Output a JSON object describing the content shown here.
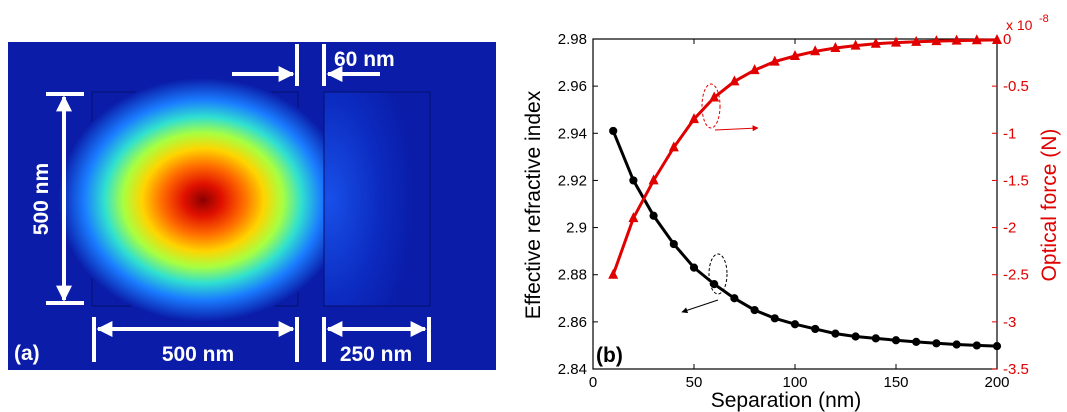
{
  "panel_a": {
    "label": "(a)",
    "dim_height": "500 nm",
    "dim_width": "500 nm",
    "dim_gap": "60 nm",
    "dim_width2": "250 nm",
    "colors": {
      "background": "#0a1ca8",
      "arrow": "#ffffff",
      "hot": "#8a0000"
    }
  },
  "chart_data": {
    "type": "line",
    "panel_label": "(b)",
    "xlabel": "Separation (nm)",
    "ylabel_left": "Effective refractive index",
    "ylabel_right": "Optical force (N)",
    "right_exponent": "x 10",
    "right_exponent_power": "-8",
    "x_range": [
      0,
      200
    ],
    "y_left_range": [
      2.84,
      2.98
    ],
    "y_right_range": [
      -3.5,
      0
    ],
    "x_ticks": [
      "0",
      "50",
      "100",
      "150",
      "200"
    ],
    "y_left_ticks": [
      "2.84",
      "2.86",
      "2.88",
      "2.9",
      "2.92",
      "2.94",
      "2.96",
      "2.98"
    ],
    "y_right_ticks": [
      "-3.5",
      "-3",
      "-2.5",
      "-2",
      "-1.5",
      "-1",
      "-0.5",
      "0"
    ],
    "grid": false,
    "series": [
      {
        "axis": "left",
        "color": "#000000",
        "marker": "circle",
        "x": [
          10,
          20,
          30,
          40,
          50,
          60,
          70,
          80,
          90,
          100,
          110,
          120,
          130,
          140,
          150,
          160,
          170,
          180,
          190,
          200
        ],
        "values": [
          2.941,
          2.92,
          2.905,
          2.893,
          2.883,
          2.876,
          2.87,
          2.865,
          2.8615,
          2.859,
          2.857,
          2.855,
          2.8538,
          2.853,
          2.8522,
          2.8515,
          2.8509,
          2.8504,
          2.85,
          2.8497
        ]
      },
      {
        "axis": "right",
        "color": "#e00000",
        "marker": "triangle",
        "x": [
          10,
          20,
          30,
          40,
          50,
          60,
          70,
          80,
          90,
          100,
          110,
          120,
          130,
          140,
          150,
          160,
          170,
          180,
          190,
          200
        ],
        "values": [
          -2.5,
          -1.9,
          -1.5,
          -1.15,
          -0.85,
          -0.62,
          -0.45,
          -0.33,
          -0.24,
          -0.18,
          -0.13,
          -0.095,
          -0.07,
          -0.05,
          -0.038,
          -0.03,
          -0.022,
          -0.017,
          -0.013,
          -0.01
        ]
      }
    ]
  }
}
